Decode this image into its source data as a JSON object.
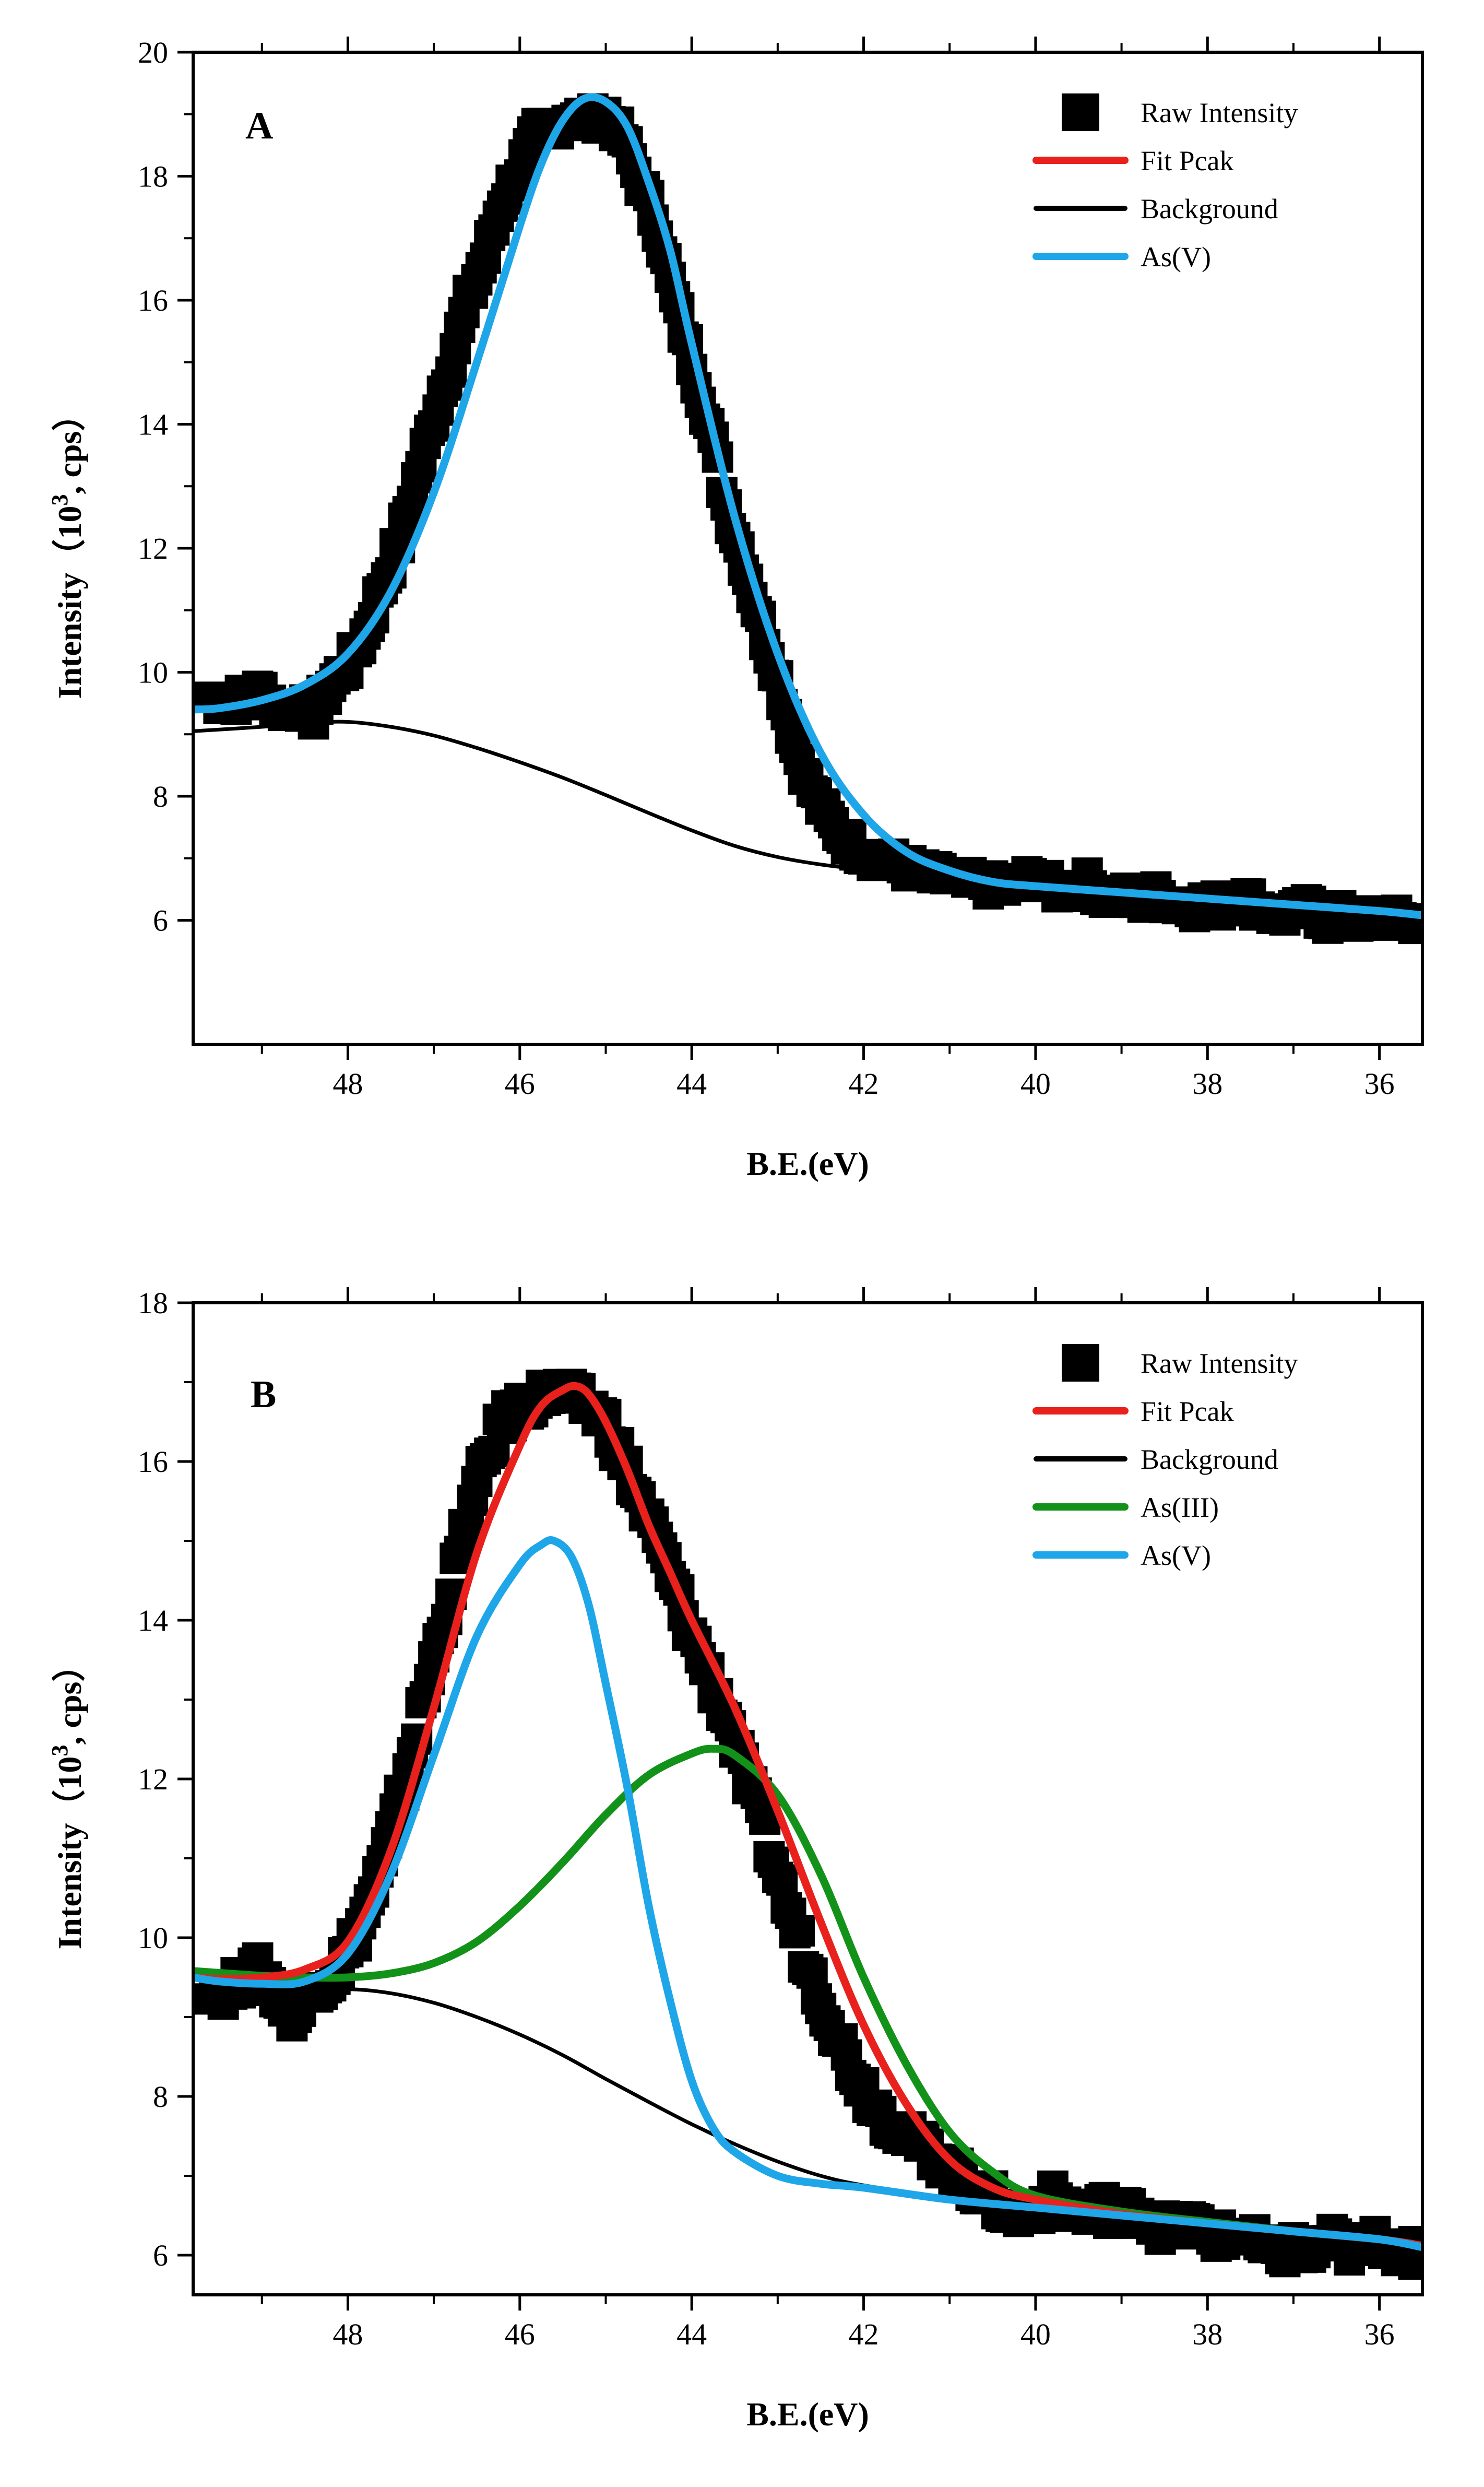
{
  "chart_data": [
    {
      "type": "line",
      "panel_label": "A",
      "xlabel": "B.E.(eV)",
      "ylabel": "Intensity（10³, cps）",
      "ylabel_main": "Intensity（10",
      "ylabel_sup": "3",
      "ylabel_tail": ", cps）",
      "xlim": [
        49.8,
        35.5
      ],
      "ylim": [
        4.0,
        20.0
      ],
      "xticks": [
        48,
        46,
        44,
        42,
        40,
        38,
        36
      ],
      "yticks": [
        6,
        8,
        10,
        12,
        14,
        16,
        18,
        20
      ],
      "legend": [
        "Raw Intensity",
        "Fit Pcak",
        "Background",
        "As(V)"
      ],
      "legend_position": "top-right",
      "series": [
        {
          "name": "Raw Intensity",
          "kind": "scatter-squares",
          "color": "#000000",
          "x": [
            49.6,
            49.4,
            49.2,
            49.0,
            48.8,
            48.6,
            48.4,
            48.2,
            48.0,
            47.8,
            47.6,
            47.4,
            47.2,
            47.0,
            46.8,
            46.6,
            46.4,
            46.2,
            46.0,
            45.8,
            45.6,
            45.4,
            45.2,
            45.0,
            44.8,
            44.6,
            44.4,
            44.2,
            44.0,
            43.8,
            43.6,
            43.4,
            43.2,
            43.0,
            42.8,
            42.6,
            42.4,
            42.2,
            42.0,
            41.8,
            41.6,
            41.4,
            41.2,
            41.0,
            40.8,
            40.6,
            40.4,
            40.2,
            40.0,
            39.8,
            39.6,
            39.4,
            39.2,
            39.0,
            38.8,
            38.6,
            38.4,
            38.2,
            38.0,
            37.8,
            37.6,
            37.4,
            37.2,
            37.0,
            36.8,
            36.6,
            36.4,
            36.2,
            36.0,
            35.8,
            35.6
          ],
          "y": [
            9.6,
            9.5,
            9.6,
            9.7,
            9.4,
            9.5,
            9.3,
            9.8,
            10.1,
            10.6,
            11.4,
            12.1,
            13.1,
            14.1,
            15.0,
            16.0,
            16.7,
            17.6,
            18.1,
            18.7,
            18.8,
            19.0,
            18.9,
            19.0,
            18.6,
            17.9,
            17.2,
            16.0,
            15.0,
            14.0,
            12.7,
            11.8,
            10.8,
            9.9,
            8.8,
            8.1,
            7.6,
            7.3,
            7.1,
            7.0,
            6.9,
            6.8,
            6.7,
            6.7,
            6.6,
            6.6,
            6.5,
            6.6,
            6.7,
            6.5,
            6.5,
            6.6,
            6.4,
            6.4,
            6.3,
            6.4,
            6.3,
            6.2,
            6.3,
            6.2,
            6.4,
            6.2,
            6.1,
            6.1,
            6.2,
            6.0,
            6.1,
            6.0,
            6.1,
            6.0,
            6.0
          ]
        },
        {
          "name": "Background",
          "kind": "line",
          "color": "#000000",
          "x": [
            49.8,
            49.0,
            48.5,
            48.0,
            47.5,
            47.0,
            46.5,
            46.0,
            45.5,
            45.0,
            44.5,
            44.0,
            43.5,
            43.0,
            42.5,
            42.0,
            41.0,
            40.0,
            39.0,
            38.0,
            37.0,
            36.0,
            35.5
          ],
          "y": [
            9.05,
            9.12,
            9.18,
            9.2,
            9.12,
            8.98,
            8.78,
            8.55,
            8.3,
            8.02,
            7.73,
            7.45,
            7.2,
            7.02,
            6.9,
            6.82,
            6.7,
            6.58,
            6.48,
            6.38,
            6.28,
            6.18,
            6.1
          ]
        },
        {
          "name": "As(V)",
          "kind": "line",
          "color": "#1ea6e8",
          "x": [
            49.8,
            49.5,
            49.0,
            48.5,
            48.0,
            47.5,
            47.0,
            46.5,
            46.0,
            45.75,
            45.5,
            45.25,
            45.0,
            44.75,
            44.5,
            44.25,
            44.0,
            43.5,
            43.0,
            42.5,
            42.0,
            41.5,
            41.0,
            40.5,
            40.0,
            39.0,
            38.0,
            37.0,
            36.0,
            35.5
          ],
          "y": [
            9.4,
            9.42,
            9.55,
            9.8,
            10.3,
            11.3,
            12.9,
            15.0,
            17.2,
            18.2,
            18.9,
            19.25,
            19.2,
            18.8,
            17.9,
            16.8,
            15.3,
            12.5,
            10.3,
            8.7,
            7.7,
            7.1,
            6.8,
            6.62,
            6.55,
            6.45,
            6.35,
            6.25,
            6.15,
            6.08
          ]
        },
        {
          "name": "Fit Pcak",
          "kind": "line",
          "color": "#e8211d",
          "x": [],
          "y": []
        }
      ]
    },
    {
      "type": "line",
      "panel_label": "B",
      "xlabel": "B.E.(eV)",
      "ylabel": "Intensity（10³, cps）",
      "ylabel_main": "Intensity（10",
      "ylabel_sup": "3",
      "ylabel_tail": ", cps）",
      "xlim": [
        49.8,
        35.5
      ],
      "ylim": [
        5.5,
        18.0
      ],
      "xticks": [
        48,
        46,
        44,
        42,
        40,
        38,
        36
      ],
      "yticks": [
        6,
        8,
        10,
        12,
        14,
        16,
        18
      ],
      "legend": [
        "Raw Intensity",
        "Fit Pcak",
        "Background",
        "As(III)",
        "As(V)"
      ],
      "legend_position": "top-right",
      "series": [
        {
          "name": "Raw Intensity",
          "kind": "scatter-squares",
          "color": "#000000",
          "x": [
            49.6,
            49.4,
            49.2,
            49.0,
            48.8,
            48.6,
            48.4,
            48.2,
            48.0,
            47.8,
            47.6,
            47.4,
            47.2,
            47.0,
            46.8,
            46.6,
            46.4,
            46.2,
            46.0,
            45.8,
            45.6,
            45.4,
            45.2,
            45.0,
            44.8,
            44.6,
            44.4,
            44.2,
            44.0,
            43.8,
            43.6,
            43.4,
            43.2,
            43.0,
            42.8,
            42.6,
            42.4,
            42.2,
            42.0,
            41.8,
            41.6,
            41.4,
            41.2,
            41.0,
            40.8,
            40.6,
            40.4,
            40.2,
            40.0,
            39.8,
            39.6,
            39.4,
            39.2,
            39.0,
            38.8,
            38.6,
            38.4,
            38.2,
            38.0,
            37.8,
            37.6,
            37.4,
            37.2,
            37.0,
            36.8,
            36.6,
            36.4,
            36.2,
            36.0,
            35.8,
            35.6
          ],
          "y": [
            9.4,
            9.3,
            9.5,
            9.6,
            9.2,
            9.0,
            9.4,
            9.5,
            9.8,
            10.3,
            10.9,
            11.7,
            12.6,
            13.5,
            14.4,
            15.3,
            16.0,
            16.5,
            16.7,
            16.8,
            16.9,
            16.8,
            16.7,
            16.5,
            16.0,
            15.5,
            15.0,
            14.4,
            13.8,
            13.3,
            12.8,
            12.1,
            11.5,
            10.8,
            10.1,
            9.5,
            9.0,
            8.5,
            8.1,
            7.8,
            7.6,
            7.4,
            7.3,
            7.1,
            6.9,
            6.8,
            6.6,
            6.5,
            6.6,
            6.7,
            6.6,
            6.5,
            6.6,
            6.5,
            6.6,
            6.4,
            6.3,
            6.4,
            6.3,
            6.2,
            6.3,
            6.1,
            6.0,
            6.1,
            6.0,
            6.2,
            6.1,
            6.0,
            6.2,
            6.1,
            6.0
          ]
        },
        {
          "name": "Background",
          "kind": "line",
          "color": "#000000",
          "x": [
            49.8,
            49.0,
            48.5,
            48.0,
            47.5,
            47.0,
            46.5,
            46.0,
            45.5,
            45.0,
            44.5,
            44.0,
            43.5,
            43.0,
            42.5,
            42.0,
            41.0,
            40.0,
            39.0,
            38.0,
            37.0,
            36.0,
            35.5
          ],
          "y": [
            9.05,
            9.22,
            9.3,
            9.35,
            9.3,
            9.18,
            9.0,
            8.78,
            8.52,
            8.22,
            7.93,
            7.65,
            7.4,
            7.18,
            7.0,
            6.88,
            6.72,
            6.6,
            6.5,
            6.4,
            6.3,
            6.2,
            6.12
          ]
        },
        {
          "name": "As(V)",
          "kind": "line",
          "color": "#1ea6e8",
          "x": [
            49.8,
            49.5,
            49.0,
            48.5,
            48.0,
            47.5,
            47.0,
            46.5,
            46.0,
            45.75,
            45.6,
            45.4,
            45.2,
            45.0,
            44.75,
            44.5,
            44.25,
            44.0,
            43.75,
            43.5,
            43.0,
            42.5,
            42.0,
            41.0,
            40.0,
            39.0,
            38.0,
            37.0,
            36.0,
            35.5
          ],
          "y": [
            9.5,
            9.45,
            9.42,
            9.45,
            9.8,
            10.8,
            12.3,
            13.8,
            14.7,
            14.95,
            15.0,
            14.8,
            14.2,
            13.2,
            11.9,
            10.4,
            9.2,
            8.2,
            7.6,
            7.3,
            7.0,
            6.9,
            6.85,
            6.7,
            6.6,
            6.5,
            6.4,
            6.3,
            6.2,
            6.1
          ]
        },
        {
          "name": "As(III)",
          "kind": "line",
          "color": "#13921a",
          "x": [
            49.8,
            49.0,
            48.5,
            48.0,
            47.5,
            47.0,
            46.5,
            46.0,
            45.5,
            45.0,
            44.5,
            44.0,
            43.75,
            43.5,
            43.0,
            42.5,
            42.0,
            41.5,
            41.0,
            40.5,
            40.0,
            39.0,
            38.0,
            37.0,
            36.0,
            35.5
          ],
          "y": [
            9.58,
            9.52,
            9.5,
            9.5,
            9.55,
            9.68,
            9.95,
            10.4,
            10.95,
            11.55,
            12.05,
            12.32,
            12.38,
            12.3,
            11.8,
            10.8,
            9.5,
            8.4,
            7.55,
            7.05,
            6.75,
            6.55,
            6.42,
            6.3,
            6.2,
            6.12
          ]
        },
        {
          "name": "Fit Pcak",
          "kind": "line",
          "color": "#e8211d",
          "x": [
            49.8,
            49.5,
            49.0,
            48.5,
            48.0,
            47.5,
            47.0,
            46.5,
            46.0,
            45.75,
            45.5,
            45.35,
            45.2,
            45.0,
            44.75,
            44.5,
            44.25,
            44.0,
            43.5,
            43.0,
            42.5,
            42.0,
            41.5,
            41.0,
            40.5,
            40.0,
            39.0,
            38.0,
            37.0,
            36.0,
            35.5
          ],
          "y": [
            9.5,
            9.48,
            9.5,
            9.6,
            9.95,
            11.1,
            12.9,
            14.85,
            16.2,
            16.7,
            16.9,
            16.95,
            16.85,
            16.5,
            15.9,
            15.2,
            14.6,
            14.0,
            12.9,
            11.6,
            10.2,
            8.9,
            7.9,
            7.2,
            6.85,
            6.7,
            6.52,
            6.4,
            6.3,
            6.2,
            6.12
          ]
        }
      ]
    }
  ]
}
